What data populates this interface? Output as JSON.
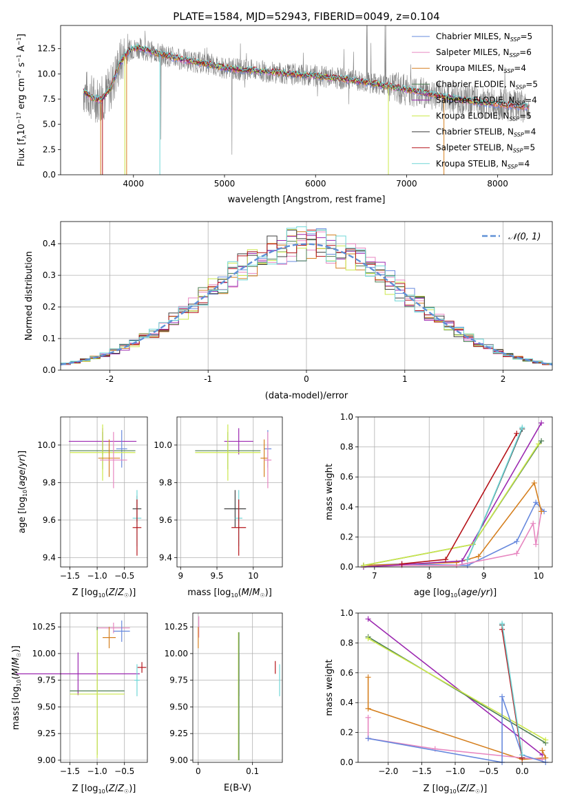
{
  "figure": {
    "title": "PLATE=1584, MJD=52943, FIBERID=0049, z=0.104"
  },
  "colors": {
    "miles_chabrier": "#6688dd",
    "miles_salpeter": "#e786c0",
    "miles_kroupa": "#d57f1e",
    "elodie_chabrier": "#4c7d52",
    "elodie_salpeter": "#9b27b0",
    "elodie_kroupa": "#cbe84a",
    "stelib_chabrier": "#3f3f3f",
    "stelib_salpeter": "#b51218",
    "stelib_kroupa": "#6ed6d6",
    "data": "#808080",
    "normal_curve": "#5f8fd6"
  },
  "legends": {
    "spectrum": [
      {
        "key": "miles_chabrier",
        "lib": "Chabrier MILES",
        "n": "5"
      },
      {
        "key": "miles_salpeter",
        "lib": "Salpeter MILES",
        "n": "6"
      },
      {
        "key": "miles_kroupa",
        "lib": "Kroupa MILES",
        "n": "4"
      },
      {
        "key": "elodie_chabrier",
        "lib": "Chabrier ELODIE",
        "n": "5"
      },
      {
        "key": "elodie_salpeter",
        "lib": "Salpeter ELODIE",
        "n": "4"
      },
      {
        "key": "elodie_kroupa",
        "lib": "Kroupa ELODIE",
        "n": "5"
      },
      {
        "key": "stelib_chabrier",
        "lib": "Chabrier STELIB",
        "n": "4"
      },
      {
        "key": "stelib_salpeter",
        "lib": "Salpeter STELIB",
        "n": "5"
      },
      {
        "key": "stelib_kroupa",
        "lib": "Kroupa STELIB",
        "n": "4"
      }
    ],
    "residual": "𝒩(0, 1)"
  },
  "chart_data": [
    {
      "id": "spectrum",
      "type": "line",
      "title": "PLATE=1584, MJD=52943, FIBERID=0049, z=0.104",
      "xlabel": "wavelength [Angstrom, rest frame]",
      "ylabel": "Flux [fλ10⁻¹⁷ erg cm⁻² s⁻¹ A⁻¹]",
      "xlim": [
        3200,
        8600
      ],
      "ylim": [
        0,
        14.8
      ],
      "xticks": [
        4000,
        5000,
        6000,
        7000,
        8000
      ],
      "yticks": [
        0.0,
        2.5,
        5.0,
        7.5,
        10.0,
        12.5
      ],
      "grid": false,
      "legend": "upper right",
      "data_range": [
        3450,
        8350
      ],
      "model_continuum": {
        "x": [
          3450,
          3550,
          3650,
          3750,
          3850,
          3950,
          4050,
          4200,
          4400,
          4600,
          4800,
          5000,
          5200,
          5400,
          5700,
          6000,
          6300,
          6600,
          6900,
          7200,
          7500,
          7800,
          8100,
          8350
        ],
        "y": [
          8.3,
          7.6,
          7.4,
          8.6,
          11.1,
          12.3,
          12.6,
          12.2,
          11.7,
          11.3,
          11.0,
          10.6,
          10.4,
          10.3,
          10.0,
          9.8,
          9.5,
          9.1,
          8.6,
          8.1,
          7.6,
          7.2,
          6.9,
          6.7
        ]
      }
    },
    {
      "id": "residuals",
      "type": "histogram",
      "xlabel": "(data-model)/error",
      "ylabel": "Normed distribution",
      "xlim": [
        -2.5,
        2.5
      ],
      "ylim": [
        0,
        0.47
      ],
      "xticks": [
        -2,
        -1,
        0,
        1,
        2
      ],
      "yticks": [
        0.0,
        0.1,
        0.2,
        0.3,
        0.4
      ],
      "grid": true,
      "legend": "upper right",
      "bin_width": 0.1,
      "curve": "normal pdf, mean 0, sigma 1"
    },
    {
      "id": "age_vs_Z",
      "type": "scatter",
      "xlabel": "Z [log₁₀(Z/Z☉)]",
      "ylabel": "age  [log₁₀(age/yr)]",
      "xlim": [
        -1.67,
        -0.08
      ],
      "ylim": [
        9.35,
        10.15
      ],
      "xticks": [
        -1.5,
        -1.0,
        -0.5
      ],
      "xticklabels": [
        "−1.5",
        "−1.0",
        "−0.5"
      ],
      "yticks": [
        9.4,
        9.6,
        9.8,
        10.0
      ],
      "grid": true,
      "points": [
        {
          "key": "elodie_salpeter",
          "x": -0.9,
          "y": 10.02,
          "xerr": 0.62,
          "yerr": 0.07
        },
        {
          "key": "miles_chabrier",
          "x": -0.55,
          "y": 9.98,
          "xerr": 0.1,
          "yerr": 0.1
        },
        {
          "key": "elodie_chabrier",
          "x": -0.9,
          "y": 9.97,
          "xerr": 0.6,
          "yerr": 0.1
        },
        {
          "key": "elodie_kroupa",
          "x": -0.9,
          "y": 9.96,
          "xerr": 0.6,
          "yerr": 0.15
        },
        {
          "key": "miles_kroupa",
          "x": -0.78,
          "y": 9.93,
          "xerr": 0.2,
          "yerr": 0.1
        },
        {
          "key": "miles_salpeter",
          "x": -0.7,
          "y": 9.92,
          "xerr": 0.25,
          "yerr": 0.15
        },
        {
          "key": "stelib_chabrier",
          "x": -0.27,
          "y": 9.66,
          "xerr": 0.08,
          "yerr": 0.07
        },
        {
          "key": "stelib_kroupa",
          "x": -0.27,
          "y": 9.61,
          "xerr": 0.08,
          "yerr": 0.15
        },
        {
          "key": "stelib_salpeter",
          "x": -0.27,
          "y": 9.56,
          "xerr": 0.08,
          "yerr": 0.15
        }
      ]
    },
    {
      "id": "age_vs_mass",
      "type": "scatter",
      "xlabel": "mass [log₁₀(M/M☉)]",
      "xlim": [
        8.95,
        10.4
      ],
      "ylim": [
        9.35,
        10.15
      ],
      "xticks": [
        9.0,
        9.5,
        10.0
      ],
      "yticks": [
        9.4,
        9.6,
        9.8,
        10.0
      ],
      "grid": true,
      "points": [
        {
          "key": "elodie_salpeter",
          "x": 9.8,
          "y": 10.02,
          "xerr": 0.2,
          "yerr": 0.07
        },
        {
          "key": "elodie_chabrier",
          "x": 9.65,
          "y": 9.97,
          "xerr": 0.45,
          "yerr": 0.1
        },
        {
          "key": "elodie_kroupa",
          "x": 9.65,
          "y": 9.96,
          "xerr": 0.45,
          "yerr": 0.15
        },
        {
          "key": "miles_chabrier",
          "x": 10.2,
          "y": 9.98,
          "xerr": 0.05,
          "yerr": 0.1
        },
        {
          "key": "miles_kroupa",
          "x": 10.15,
          "y": 9.93,
          "xerr": 0.05,
          "yerr": 0.1
        },
        {
          "key": "miles_salpeter",
          "x": 10.2,
          "y": 9.92,
          "xerr": 0.05,
          "yerr": 0.15
        },
        {
          "key": "stelib_chabrier",
          "x": 9.75,
          "y": 9.66,
          "xerr": 0.15,
          "yerr": 0.1
        },
        {
          "key": "stelib_kroupa",
          "x": 9.8,
          "y": 9.61,
          "xerr": 0.05,
          "yerr": 0.15
        },
        {
          "key": "stelib_salpeter",
          "x": 9.8,
          "y": 9.56,
          "xerr": 0.1,
          "yerr": 0.15
        }
      ]
    },
    {
      "id": "weight_vs_age",
      "type": "line",
      "xlabel": "age  [log₁₀(age/yr)]",
      "ylabel": "mass weight",
      "xlim": [
        6.7,
        10.25
      ],
      "ylim": [
        0,
        1.0
      ],
      "xticks": [
        7,
        8,
        9,
        10
      ],
      "yticks": [
        0.0,
        0.2,
        0.4,
        0.6,
        0.8,
        1.0
      ],
      "grid": true,
      "series": [
        {
          "key": "miles_chabrier",
          "x": [
            6.8,
            7.5,
            8.7,
            9.6,
            9.95,
            10.1
          ],
          "y": [
            0.01,
            0.02,
            0.01,
            0.17,
            0.43,
            0.37
          ]
        },
        {
          "key": "miles_salpeter",
          "x": [
            6.8,
            7.5,
            8.5,
            9.6,
            9.9,
            9.95,
            10.05
          ],
          "y": [
            0.0,
            0.01,
            0.01,
            0.09,
            0.29,
            0.15,
            0.37
          ]
        },
        {
          "key": "miles_kroupa",
          "x": [
            6.8,
            8.5,
            8.9,
            9.92,
            10.05
          ],
          "y": [
            0.01,
            0.03,
            0.07,
            0.56,
            0.37
          ]
        },
        {
          "key": "elodie_chabrier",
          "x": [
            6.8,
            8.8,
            10.05
          ],
          "y": [
            0.01,
            0.15,
            0.84
          ]
        },
        {
          "key": "elodie_salpeter",
          "x": [
            6.8,
            8.6,
            10.05
          ],
          "y": [
            0.0,
            0.04,
            0.96
          ]
        },
        {
          "key": "elodie_kroupa",
          "x": [
            6.8,
            8.8,
            10.0
          ],
          "y": [
            0.01,
            0.15,
            0.82
          ]
        },
        {
          "key": "stelib_chabrier",
          "x": [
            8.7,
            9.7
          ],
          "y": [
            0.05,
            0.92
          ]
        },
        {
          "key": "stelib_salpeter",
          "x": [
            7.5,
            8.3,
            9.6
          ],
          "y": [
            0.02,
            0.05,
            0.89
          ]
        },
        {
          "key": "stelib_kroupa",
          "x": [
            8.7,
            9.7
          ],
          "y": [
            0.05,
            0.93
          ]
        }
      ]
    },
    {
      "id": "mass_vs_Z",
      "type": "scatter",
      "xlabel": "Z [log₁₀(Z/Z☉)]",
      "ylabel": "mass [log₁₀(M/M☉)]",
      "xlim": [
        -1.67,
        -0.08
      ],
      "ylim": [
        8.98,
        10.38
      ],
      "xticks": [
        -1.5,
        -1.0,
        -0.5
      ],
      "xticklabels": [
        "−1.5",
        "−1.0",
        "−0.5"
      ],
      "yticks": [
        9.0,
        9.25,
        9.5,
        9.75,
        10.0,
        10.25
      ],
      "yticklabels": [
        "9.00",
        "9.25",
        "9.50",
        "9.75",
        "10.00",
        "10.25"
      ],
      "grid": true,
      "points": [
        {
          "key": "miles_salpeter",
          "x": -0.7,
          "y": 10.24,
          "xerr": 0.3,
          "yerr": 0.05
        },
        {
          "key": "miles_chabrier",
          "x": -0.55,
          "y": 10.21,
          "xerr": 0.15,
          "yerr": 0.1
        },
        {
          "key": "miles_kroupa",
          "x": -0.78,
          "y": 10.15,
          "xerr": 0.12,
          "yerr": 0.1
        },
        {
          "key": "stelib_salpeter",
          "x": -0.18,
          "y": 9.87,
          "xerr": 0.08,
          "yerr": 0.05
        },
        {
          "key": "elodie_salpeter",
          "x": -1.35,
          "y": 9.81,
          "xerr": 1.13,
          "yerr": 0.2
        },
        {
          "key": "stelib_kroupa",
          "x": -0.27,
          "y": 9.75,
          "xerr": 0.05,
          "yerr": 0.15
        },
        {
          "key": "elodie_chabrier",
          "x": -1.0,
          "y": 9.65,
          "xerr": 0.5,
          "yerr": 0.6
        },
        {
          "key": "elodie_kroupa",
          "x": -1.0,
          "y": 9.62,
          "xerr": 0.5,
          "yerr": 0.6
        }
      ]
    },
    {
      "id": "mass_vs_ebv",
      "type": "scatter",
      "xlabel": "E(B-V)",
      "xlim": [
        -0.01,
        0.155
      ],
      "ylim": [
        8.98,
        10.38
      ],
      "xticks": [
        0.0,
        0.1
      ],
      "yticks": [
        9.0,
        9.25,
        9.5,
        9.75,
        10.0,
        10.25
      ],
      "yticklabels": [
        "9.00",
        "9.25",
        "9.50",
        "9.75",
        "10.00",
        "10.25"
      ],
      "grid": true,
      "points": [
        {
          "key": "miles_salpeter",
          "x": 0.001,
          "y": 10.25,
          "yerr": 0.1
        },
        {
          "key": "miles_kroupa",
          "x": 0.0,
          "y": 10.15,
          "yerr": 0.1
        },
        {
          "key": "elodie_salpeter",
          "x": 0.075,
          "y": 9.8,
          "yerr": 0.2
        },
        {
          "key": "elodie_kroupa",
          "x": 0.074,
          "y": 9.6,
          "yerr": 0.6
        },
        {
          "key": "elodie_chabrier",
          "x": 0.075,
          "y": 9.6,
          "yerr": 0.6
        },
        {
          "key": "stelib_salpeter",
          "x": 0.142,
          "y": 9.87,
          "yerr": 0.06
        },
        {
          "key": "stelib_kroupa",
          "x": 0.15,
          "y": 9.75,
          "yerr": 0.15
        }
      ]
    },
    {
      "id": "weight_vs_Z",
      "type": "line",
      "xlabel": "Z [log₁₀(Z/Z☉)]",
      "ylabel": "mass weight",
      "xlim": [
        -2.45,
        0.45
      ],
      "ylim": [
        0,
        1.0
      ],
      "xticks": [
        -2.0,
        -1.5,
        -1.0,
        -0.5,
        0.0
      ],
      "xticklabels": [
        "−2.0",
        "−1.5",
        "−1.0",
        "−0.5",
        "0.0"
      ],
      "yticks": [
        0.0,
        0.2,
        0.4,
        0.6,
        0.8,
        1.0
      ],
      "grid": true,
      "series": [
        {
          "key": "elodie_salpeter",
          "x": [
            -2.3,
            0.3
          ],
          "y": [
            0.96,
            0.05
          ]
        },
        {
          "key": "elodie_chabrier",
          "x": [
            -2.3,
            0.35
          ],
          "y": [
            0.84,
            0.13
          ]
        },
        {
          "key": "elodie_kroupa",
          "x": [
            -2.3,
            0.35
          ],
          "y": [
            0.83,
            0.15
          ]
        },
        {
          "key": "miles_kroupa",
          "x": [
            -2.3,
            -2.3,
            0.0,
            0.35,
            0.3
          ],
          "y": [
            0.57,
            0.36,
            0.02,
            0.03,
            0.08
          ]
        },
        {
          "key": "miles_salpeter",
          "x": [
            -2.3,
            -2.3,
            -1.3,
            0.0,
            0.3
          ],
          "y": [
            0.3,
            0.16,
            0.09,
            0.03,
            0.02
          ]
        },
        {
          "key": "miles_chabrier",
          "x": [
            -2.3,
            -0.3,
            -0.3,
            0.0,
            0.35
          ],
          "y": [
            0.16,
            0.0,
            0.44,
            0.05,
            0.0
          ]
        },
        {
          "key": "stelib_chabrier",
          "x": [
            -0.3,
            0.0
          ],
          "y": [
            0.92,
            0.03
          ]
        },
        {
          "key": "stelib_salpeter",
          "x": [
            -0.3,
            0.0
          ],
          "y": [
            0.89,
            0.03
          ]
        },
        {
          "key": "stelib_kroupa",
          "x": [
            -0.3,
            0.0
          ],
          "y": [
            0.93,
            0.05
          ]
        }
      ]
    }
  ]
}
